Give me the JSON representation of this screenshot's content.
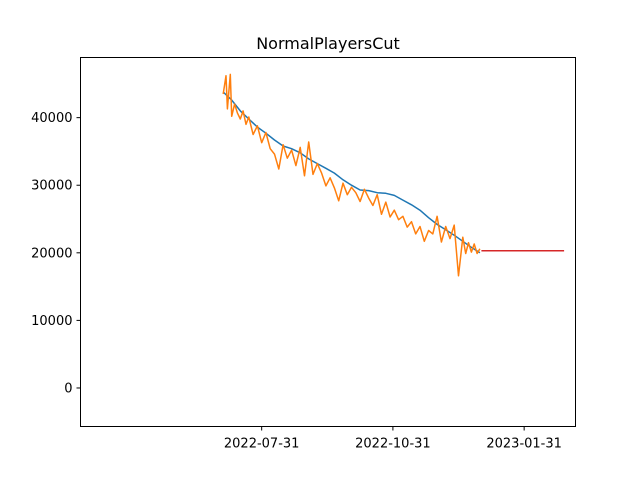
{
  "chart_data": {
    "type": "line",
    "title": "NormalPlayersCut",
    "xlabel": "",
    "ylabel": "",
    "x_axis_type": "date",
    "xlim": [
      "2022-03-26",
      "2023-03-08"
    ],
    "ylim": [
      -5700,
      48900
    ],
    "x_ticks": [
      "2022-07-31",
      "2022-10-31",
      "2023-01-31"
    ],
    "y_ticks": [
      0,
      10000,
      20000,
      30000,
      40000
    ],
    "y_tick_labels": [
      "0",
      "10000",
      "20000",
      "30000",
      "40000"
    ],
    "grid": false,
    "legend": null,
    "series": [
      {
        "color": "#1f77b4",
        "x": [
          "2022-07-04",
          "2022-07-10",
          "2022-07-16",
          "2022-07-22",
          "2022-07-28",
          "2022-08-03",
          "2022-08-09",
          "2022-08-15",
          "2022-08-21",
          "2022-08-27",
          "2022-09-02",
          "2022-09-08",
          "2022-09-14",
          "2022-09-20",
          "2022-09-26",
          "2022-10-02",
          "2022-10-08",
          "2022-10-14",
          "2022-10-20",
          "2022-10-26",
          "2022-11-01",
          "2022-11-07",
          "2022-11-13",
          "2022-11-19",
          "2022-11-25",
          "2022-12-01",
          "2022-12-07",
          "2022-12-13",
          "2022-12-19",
          "2022-12-25",
          "2022-12-31"
        ],
        "values": [
          43800,
          42600,
          41000,
          39800,
          38600,
          37700,
          36700,
          35800,
          35400,
          34800,
          33900,
          33200,
          32500,
          31800,
          30800,
          30000,
          29300,
          29200,
          28900,
          28800,
          28500,
          27800,
          27100,
          26300,
          25200,
          24200,
          23400,
          22600,
          21700,
          20800,
          20000
        ]
      },
      {
        "color": "#ff7f0e",
        "x": [
          "2022-07-04",
          "2022-07-06",
          "2022-07-07",
          "2022-07-09",
          "2022-07-10",
          "2022-07-12",
          "2022-07-14",
          "2022-07-16",
          "2022-07-18",
          "2022-07-20",
          "2022-07-22",
          "2022-07-25",
          "2022-07-28",
          "2022-07-31",
          "2022-08-03",
          "2022-08-06",
          "2022-08-09",
          "2022-08-12",
          "2022-08-15",
          "2022-08-18",
          "2022-08-21",
          "2022-08-24",
          "2022-08-27",
          "2022-08-30",
          "2022-09-02",
          "2022-09-05",
          "2022-09-08",
          "2022-09-11",
          "2022-09-14",
          "2022-09-17",
          "2022-09-20",
          "2022-09-23",
          "2022-09-26",
          "2022-09-29",
          "2022-10-02",
          "2022-10-05",
          "2022-10-08",
          "2022-10-11",
          "2022-10-14",
          "2022-10-17",
          "2022-10-20",
          "2022-10-23",
          "2022-10-26",
          "2022-10-29",
          "2022-11-01",
          "2022-11-04",
          "2022-11-07",
          "2022-11-10",
          "2022-11-13",
          "2022-11-16",
          "2022-11-19",
          "2022-11-22",
          "2022-11-25",
          "2022-11-28",
          "2022-12-01",
          "2022-12-04",
          "2022-12-07",
          "2022-12-10",
          "2022-12-13",
          "2022-12-16",
          "2022-12-19",
          "2022-12-21",
          "2022-12-23",
          "2022-12-25",
          "2022-12-27",
          "2022-12-29",
          "2022-12-31"
        ],
        "values": [
          43500,
          46200,
          41300,
          46400,
          40200,
          42000,
          40700,
          39800,
          41000,
          39000,
          40100,
          37500,
          38800,
          36300,
          37800,
          35400,
          34600,
          32400,
          36000,
          34000,
          35200,
          32900,
          35600,
          31400,
          36400,
          31600,
          33200,
          31800,
          29900,
          31100,
          29600,
          27700,
          30300,
          28600,
          29700,
          28900,
          27600,
          29400,
          28100,
          27000,
          28600,
          25700,
          27500,
          25300,
          26300,
          24900,
          25400,
          23800,
          24600,
          22800,
          23900,
          21700,
          23300,
          22800,
          25400,
          21600,
          23900,
          22100,
          24100,
          16600,
          22300,
          19900,
          21500,
          20100,
          21300,
          19900,
          20600
        ]
      },
      {
        "color": "#d62728",
        "x": [
          "2023-01-01",
          "2023-02-28"
        ],
        "values": [
          20300,
          20300
        ]
      }
    ]
  }
}
